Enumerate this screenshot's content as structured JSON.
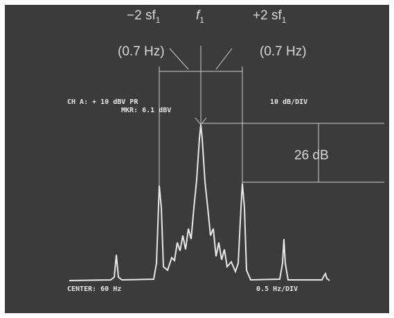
{
  "annotations": {
    "minus": {
      "label": "−2 sf",
      "sub": "1",
      "freq": "(0.7 Hz)"
    },
    "center": {
      "label": "f",
      "sub": "1"
    },
    "plus": {
      "label": "+2 sf",
      "sub": "1",
      "freq": "(0.7 Hz)"
    },
    "level": "26 dB"
  },
  "screen": {
    "channel": "CH A: + 10 dBV  PR",
    "marker": "MKR: 6.1 dBV",
    "scale": "10 dB/DIV",
    "center": "CENTER: 60 Hz",
    "span": "0.5 Hz/DIV"
  }
}
